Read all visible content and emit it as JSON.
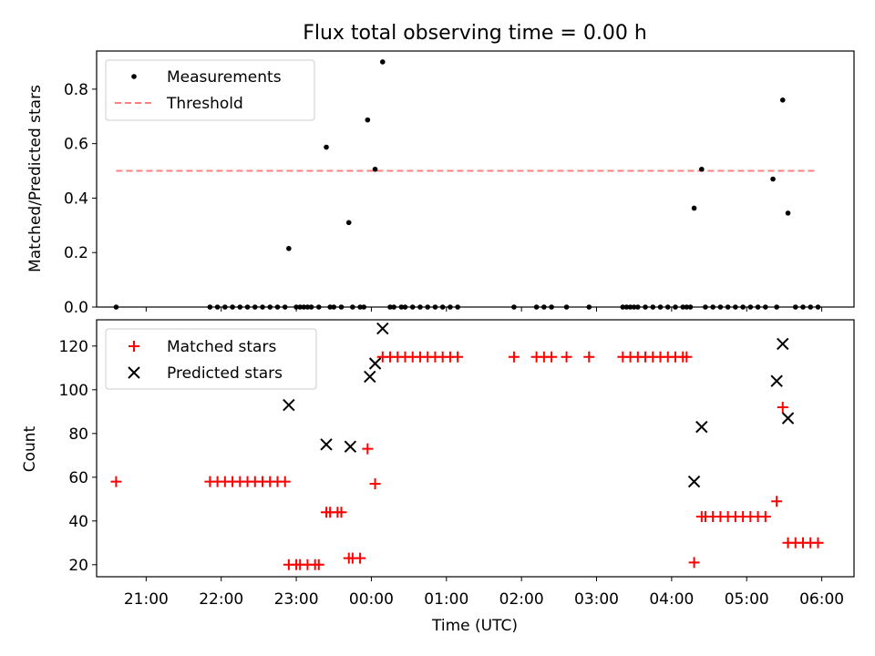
{
  "chart_data": [
    {
      "type": "scatter",
      "title": "Flux total observing time = 0.00 h",
      "xlabel": "",
      "ylabel": "Matched/Predicted stars",
      "ylim": [
        0,
        0.94
      ],
      "yticks": [
        "0.0",
        "0.2",
        "0.4",
        "0.6",
        "0.8"
      ],
      "xlim": [
        20.34,
        30.43
      ],
      "grid": false,
      "legend_position": "upper-left",
      "series": [
        {
          "name": "Measurements",
          "marker": "dot",
          "color": "#000000",
          "x": [
            20.6,
            21.85,
            21.95,
            22.05,
            22.15,
            22.25,
            22.35,
            22.45,
            22.55,
            22.65,
            22.75,
            22.85,
            22.9,
            23.0,
            23.05,
            23.1,
            23.15,
            23.2,
            23.3,
            23.4,
            23.45,
            23.5,
            23.6,
            23.7,
            23.75,
            23.85,
            23.9,
            23.95,
            24.05,
            24.15,
            24.25,
            24.3,
            24.4,
            24.45,
            24.55,
            24.65,
            24.75,
            24.85,
            24.95,
            25.05,
            25.15,
            25.9,
            26.2,
            26.3,
            26.4,
            26.6,
            26.9,
            27.35,
            27.4,
            27.45,
            27.5,
            27.55,
            27.65,
            27.75,
            27.85,
            27.95,
            28.05,
            28.15,
            28.2,
            28.25,
            28.3,
            28.4,
            28.45,
            28.55,
            28.65,
            28.75,
            28.85,
            28.95,
            29.05,
            29.15,
            29.25,
            29.35,
            29.4,
            29.48,
            29.55,
            29.65,
            29.75,
            29.85,
            29.95
          ],
          "y": [
            0,
            0,
            0,
            0,
            0,
            0,
            0,
            0,
            0,
            0,
            0,
            0,
            0.215,
            0,
            0,
            0,
            0,
            0,
            0,
            0.587,
            0,
            0,
            0,
            0.31,
            0,
            0,
            0,
            0.687,
            0.506,
            0.9,
            0,
            0,
            0,
            0,
            0,
            0,
            0,
            0,
            0,
            0,
            0,
            0,
            0,
            0,
            0,
            0,
            0,
            0,
            0,
            0,
            0,
            0,
            0,
            0,
            0,
            0,
            0,
            0,
            0,
            0,
            0.363,
            0.506,
            0,
            0,
            0,
            0,
            0,
            0,
            0,
            0,
            0,
            0.47,
            0,
            0.76,
            0.345,
            0,
            0,
            0,
            0
          ]
        },
        {
          "name": "Threshold",
          "marker": "dashed-line",
          "color": "#ff8080",
          "x": [
            20.6,
            29.95
          ],
          "y": [
            0.5,
            0.5
          ]
        }
      ]
    },
    {
      "type": "scatter",
      "title": "",
      "xlabel": "Time (UTC)",
      "ylabel": "Count",
      "ylim": [
        14.5,
        132
      ],
      "yticks": [
        "20",
        "40",
        "60",
        "80",
        "100",
        "120"
      ],
      "xlim": [
        20.34,
        30.43
      ],
      "xticks": [
        {
          "v": 21,
          "label": "21:00"
        },
        {
          "v": 22,
          "label": "22:00"
        },
        {
          "v": 23,
          "label": "23:00"
        },
        {
          "v": 24,
          "label": "00:00"
        },
        {
          "v": 25,
          "label": "01:00"
        },
        {
          "v": 26,
          "label": "02:00"
        },
        {
          "v": 27,
          "label": "03:00"
        },
        {
          "v": 28,
          "label": "04:00"
        },
        {
          "v": 29,
          "label": "05:00"
        },
        {
          "v": 30,
          "label": "06:00"
        }
      ],
      "grid": false,
      "legend_position": "upper-left",
      "series": [
        {
          "name": "Matched stars",
          "marker": "plus",
          "color": "#ff0000",
          "x": [
            20.6,
            21.85,
            21.95,
            22.05,
            22.15,
            22.25,
            22.35,
            22.45,
            22.55,
            22.65,
            22.75,
            22.85,
            22.9,
            23.0,
            23.05,
            23.15,
            23.25,
            23.3,
            23.4,
            23.45,
            23.55,
            23.6,
            23.7,
            23.75,
            23.85,
            23.95,
            24.05,
            24.15,
            24.25,
            24.35,
            24.45,
            24.55,
            24.65,
            24.75,
            24.85,
            24.95,
            25.05,
            25.15,
            25.9,
            26.2,
            26.3,
            26.4,
            26.6,
            26.9,
            27.35,
            27.45,
            27.55,
            27.65,
            27.75,
            27.85,
            27.95,
            28.05,
            28.15,
            28.2,
            28.3,
            28.4,
            28.45,
            28.55,
            28.65,
            28.75,
            28.85,
            28.95,
            29.05,
            29.15,
            29.25,
            29.4,
            29.48,
            29.55,
            29.65,
            29.75,
            29.85,
            29.95
          ],
          "y": [
            58,
            58,
            58,
            58,
            58,
            58,
            58,
            58,
            58,
            58,
            58,
            58,
            20,
            20,
            20,
            20,
            20,
            20,
            44,
            44,
            44,
            44,
            23,
            23,
            23,
            73,
            57,
            115,
            115,
            115,
            115,
            115,
            115,
            115,
            115,
            115,
            115,
            115,
            115,
            115,
            115,
            115,
            115,
            115,
            115,
            115,
            115,
            115,
            115,
            115,
            115,
            115,
            115,
            115,
            21,
            42,
            42,
            42,
            42,
            42,
            42,
            42,
            42,
            42,
            42,
            49,
            92,
            30,
            30,
            30,
            30,
            30
          ]
        },
        {
          "name": "Predicted stars",
          "marker": "x",
          "color": "#000000",
          "x": [
            22.9,
            23.4,
            23.72,
            23.98,
            24.05,
            24.15,
            28.3,
            28.4,
            29.4,
            29.48,
            29.55
          ],
          "y": [
            93,
            75,
            74,
            106,
            112,
            128,
            58,
            83,
            104,
            121,
            87
          ]
        }
      ]
    }
  ]
}
